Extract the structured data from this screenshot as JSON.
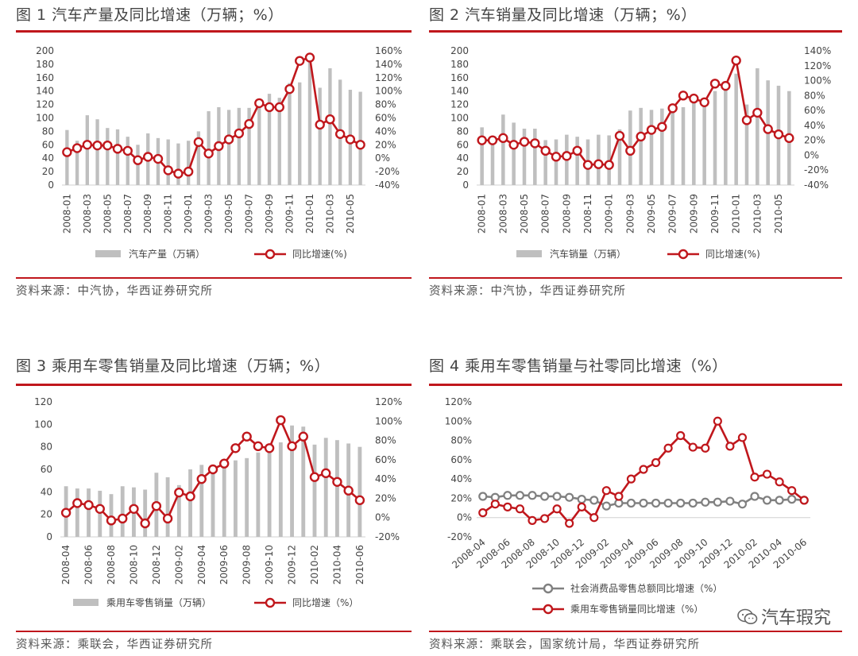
{
  "panels": [
    {
      "title": "图 1  汽车产量及同比增速（万辆；%）",
      "source": "资料来源：中汽协，华西证券研究所"
    },
    {
      "title": "图 2 汽车销量及同比增速（万辆；%）",
      "source": "资料来源：中汽协，华西证券研究所"
    },
    {
      "title": "图 3 乘用车零售销量及同比增速（万辆；%）",
      "source": "资料来源：乘联会，华西证券研究所"
    },
    {
      "title": "图 4 乘用车零售销量与社零同比增速（%）",
      "source": "资料来源：乘联会，国家统计局，华西证券研究所"
    }
  ],
  "watermark": "汽车瑕究",
  "colors": {
    "accent": "#c0171c",
    "bar": "#bfbfbf",
    "gray_line": "#808080"
  },
  "chart_data": [
    {
      "id": "chart1",
      "type": "bar+line",
      "categories": [
        "2008-01",
        "2008-02",
        "2008-03",
        "2008-04",
        "2008-05",
        "2008-06",
        "2008-07",
        "2008-08",
        "2008-09",
        "2008-10",
        "2008-11",
        "2008-12",
        "2009-01",
        "2009-02",
        "2009-03",
        "2009-04",
        "2009-05",
        "2009-06",
        "2009-07",
        "2009-08",
        "2009-09",
        "2009-10",
        "2009-11",
        "2009-12",
        "2010-01",
        "2010-02",
        "2010-03",
        "2010-04",
        "2010-05",
        "2010-06"
      ],
      "tick_labels": [
        "2008-01",
        "2008-03",
        "2008-05",
        "2008-07",
        "2008-09",
        "2008-11",
        "2009-01",
        "2009-03",
        "2009-05",
        "2009-07",
        "2009-09",
        "2009-11",
        "2010-01",
        "2010-03",
        "2010-05"
      ],
      "series": [
        {
          "name": "汽车产量（万辆）",
          "axis": "left",
          "kind": "bar",
          "values": [
            82,
            66,
            104,
            98,
            85,
            83,
            72,
            60,
            77,
            70,
            68,
            62,
            66,
            80,
            110,
            116,
            112,
            115,
            115,
            115,
            136,
            130,
            152,
            153,
            184,
            145,
            174,
            157,
            142,
            139
          ]
        },
        {
          "name": "同比增速(%)",
          "axis": "right",
          "kind": "line",
          "values": [
            9,
            15,
            20,
            19,
            19,
            14,
            11,
            -3,
            2,
            -1,
            -18,
            -23,
            -20,
            24,
            7,
            18,
            28,
            37,
            51,
            82,
            76,
            76,
            103,
            145,
            150,
            50,
            58,
            36,
            28,
            20
          ]
        }
      ],
      "left_axis": {
        "min": 0,
        "max": 200,
        "step": 20,
        "ticks": [
          "0",
          "20",
          "40",
          "60",
          "80",
          "100",
          "120",
          "140",
          "160",
          "180",
          "200"
        ]
      },
      "right_axis": {
        "min": -40,
        "max": 160,
        "step": 20,
        "ticks": [
          "-40%",
          "-20%",
          "0%",
          "20%",
          "40%",
          "60%",
          "80%",
          "100%",
          "120%",
          "140%",
          "160%"
        ]
      },
      "legend": [
        "汽车产量（万辆）",
        "同比增速(%)"
      ]
    },
    {
      "id": "chart2",
      "type": "bar+line",
      "categories": [
        "2008-01",
        "2008-02",
        "2008-03",
        "2008-04",
        "2008-05",
        "2008-06",
        "2008-07",
        "2008-08",
        "2008-09",
        "2008-10",
        "2008-11",
        "2008-12",
        "2009-01",
        "2009-02",
        "2009-03",
        "2009-04",
        "2009-05",
        "2009-06",
        "2009-07",
        "2009-08",
        "2009-09",
        "2009-10",
        "2009-11",
        "2009-12",
        "2010-01",
        "2010-02",
        "2010-03",
        "2010-04",
        "2010-05",
        "2010-06"
      ],
      "tick_labels": [
        "2008-01",
        "2008-03",
        "2008-05",
        "2008-07",
        "2008-09",
        "2008-11",
        "2009-01",
        "2009-03",
        "2009-05",
        "2009-07",
        "2009-09",
        "2009-11",
        "2010-01",
        "2010-03",
        "2010-05"
      ],
      "series": [
        {
          "name": "汽车销量（万辆）",
          "axis": "left",
          "kind": "bar",
          "values": [
            86,
            68,
            105,
            93,
            84,
            84,
            67,
            68,
            75,
            72,
            68,
            75,
            74,
            83,
            111,
            115,
            112,
            114,
            108,
            116,
            134,
            130,
            140,
            151,
            166,
            120,
            174,
            156,
            148,
            140
          ]
        },
        {
          "name": "同比增速(%)",
          "axis": "right",
          "kind": "line",
          "values": [
            20,
            20,
            23,
            14,
            18,
            16,
            6,
            -2,
            -1,
            6,
            -13,
            -12,
            -13,
            26,
            6,
            25,
            34,
            38,
            63,
            80,
            76,
            71,
            96,
            93,
            127,
            47,
            57,
            35,
            28,
            23
          ]
        }
      ],
      "left_axis": {
        "min": 0,
        "max": 200,
        "step": 20,
        "ticks": [
          "0",
          "20",
          "40",
          "60",
          "80",
          "100",
          "120",
          "140",
          "160",
          "180",
          "200"
        ]
      },
      "right_axis": {
        "min": -40,
        "max": 140,
        "step": 20,
        "ticks": [
          "-40%",
          "-20%",
          "0%",
          "20%",
          "40%",
          "60%",
          "80%",
          "100%",
          "120%",
          "140%"
        ]
      },
      "legend": [
        "汽车销量（万辆）",
        "同比增速(%)"
      ]
    },
    {
      "id": "chart3",
      "type": "bar+line",
      "categories": [
        "2008-04",
        "2008-05",
        "2008-06",
        "2008-07",
        "2008-08",
        "2008-09",
        "2008-10",
        "2008-11",
        "2008-12",
        "2009-01",
        "2009-02",
        "2009-03",
        "2009-04",
        "2009-05",
        "2009-06",
        "2009-07",
        "2009-08",
        "2009-09",
        "2009-10",
        "2009-11",
        "2009-12",
        "2010-01",
        "2010-02",
        "2010-03",
        "2010-04",
        "2010-05",
        "2010-06"
      ],
      "tick_labels": [
        "2008-04",
        "2008-06",
        "2008-08",
        "2008-10",
        "2008-12",
        "2009-02",
        "2009-04",
        "2009-06",
        "2009-08",
        "2009-10",
        "2009-12",
        "2010-02",
        "2010-04",
        "2010-06"
      ],
      "series": [
        {
          "name": "乘用车零售销量（万辆）",
          "axis": "left",
          "kind": "bar",
          "values": [
            45,
            43,
            43,
            41,
            38,
            45,
            44,
            42,
            57,
            53,
            46,
            60,
            64,
            63,
            65,
            68,
            70,
            75,
            82,
            84,
            99,
            98,
            82,
            88,
            86,
            83,
            80
          ]
        },
        {
          "name": "同比增速（%）",
          "axis": "right",
          "kind": "line",
          "values": [
            5,
            15,
            13,
            9,
            -3,
            -1,
            9,
            -6,
            12,
            -1,
            26,
            22,
            40,
            50,
            56,
            72,
            84,
            74,
            72,
            101,
            74,
            84,
            42,
            46,
            37,
            28,
            18
          ]
        }
      ],
      "left_axis": {
        "min": 0,
        "max": 120,
        "step": 20,
        "ticks": [
          "0",
          "20",
          "40",
          "60",
          "80",
          "100",
          "120"
        ]
      },
      "right_axis": {
        "min": -20,
        "max": 120,
        "step": 20,
        "ticks": [
          "-20%",
          "0%",
          "20%",
          "40%",
          "60%",
          "80%",
          "100%",
          "120%"
        ]
      },
      "legend": [
        "乘用车零售销量（万辆）",
        "同比增速（%）"
      ]
    },
    {
      "id": "chart4",
      "type": "line",
      "categories": [
        "2008-04",
        "2008-05",
        "2008-06",
        "2008-07",
        "2008-08",
        "2008-09",
        "2008-10",
        "2008-11",
        "2008-12",
        "2009-01",
        "2009-02",
        "2009-03",
        "2009-04",
        "2009-05",
        "2009-06",
        "2009-07",
        "2009-08",
        "2009-09",
        "2009-10",
        "2009-11",
        "2009-12",
        "2010-01",
        "2010-02",
        "2010-03",
        "2010-04",
        "2010-05",
        "2010-06"
      ],
      "tick_labels": [
        "2008-04",
        "2008-06",
        "2008-08",
        "2008-10",
        "2008-12",
        "2009-02",
        "2009-04",
        "2009-06",
        "2009-08",
        "2009-10",
        "2009-12",
        "2010-02",
        "2010-04",
        "2010-06"
      ],
      "series": [
        {
          "name": "社会消费品零售总额同比增速（%）",
          "kind": "line",
          "color": "#808080",
          "values": [
            22,
            21,
            23,
            23,
            23,
            22,
            22,
            21,
            19,
            18,
            12,
            15,
            15,
            15,
            15,
            15,
            15,
            15,
            16,
            16,
            17,
            14,
            22,
            18,
            18,
            19,
            18
          ]
        },
        {
          "name": "乘用车零售销量同比增速（%）",
          "kind": "line",
          "color": "#c0171c",
          "values": [
            5,
            14,
            11,
            9,
            -3,
            -1,
            9,
            -6,
            11,
            0,
            28,
            22,
            40,
            50,
            57,
            72,
            85,
            73,
            72,
            100,
            74,
            83,
            42,
            45,
            37,
            28,
            18
          ]
        }
      ],
      "y_axis": {
        "min": -20,
        "max": 120,
        "step": 20,
        "ticks": [
          "-20%",
          "0%",
          "20%",
          "40%",
          "60%",
          "80%",
          "100%",
          "120%"
        ]
      },
      "legend": [
        "社会消费品零售总额同比增速（%）",
        "乘用车零售销量同比增速（%）"
      ]
    }
  ]
}
